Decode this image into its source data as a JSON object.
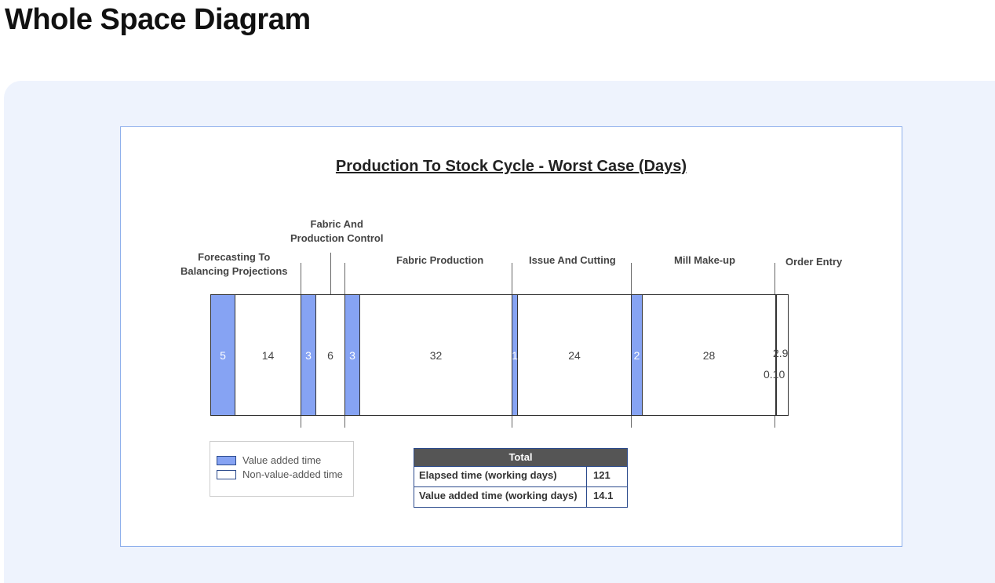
{
  "page": {
    "title": "Whole Space Diagram"
  },
  "diagram": {
    "title": "Production To Stock Cycle - Worst Case (Days)",
    "phases": [
      {
        "line1": "Forecasting To",
        "line2": "Balancing Projections"
      },
      {
        "line1": "Fabric And",
        "line2": "Production Control"
      },
      {
        "line1": "Fabric Production"
      },
      {
        "line1": "Issue And Cutting"
      },
      {
        "line1": "Mill Make-up"
      },
      {
        "line1": "Order Entry"
      }
    ],
    "segments": [
      {
        "value": "5",
        "days": 5,
        "kind": "value-added"
      },
      {
        "value": "14",
        "days": 14,
        "kind": "non-value-added"
      },
      {
        "value": "3",
        "days": 3,
        "kind": "value-added"
      },
      {
        "value": "6",
        "days": 6,
        "kind": "non-value-added"
      },
      {
        "value": "3",
        "days": 3,
        "kind": "value-added"
      },
      {
        "value": "32",
        "days": 32,
        "kind": "non-value-added"
      },
      {
        "value": "1",
        "days": 1,
        "kind": "value-added"
      },
      {
        "value": "24",
        "days": 24,
        "kind": "non-value-added"
      },
      {
        "value": "2",
        "days": 2,
        "kind": "value-added"
      },
      {
        "value": "28",
        "days": 28,
        "kind": "non-value-added"
      },
      {
        "value": "0.10",
        "days": 0.1,
        "kind": "value-added"
      },
      {
        "value": "2.9",
        "days": 2.9,
        "kind": "non-value-added"
      }
    ],
    "legend": {
      "value_added": "Value added time",
      "non_value_added": "Non-value-added time"
    },
    "totals": {
      "header": "Total",
      "rows": [
        {
          "label": "Elapsed time (working days)",
          "value": "121"
        },
        {
          "label": "Value added time (working days)",
          "value": "14.1"
        }
      ]
    },
    "colors": {
      "value_added": "#86a3f3",
      "non_value_added": "#ffffff",
      "border": "#333333"
    }
  }
}
